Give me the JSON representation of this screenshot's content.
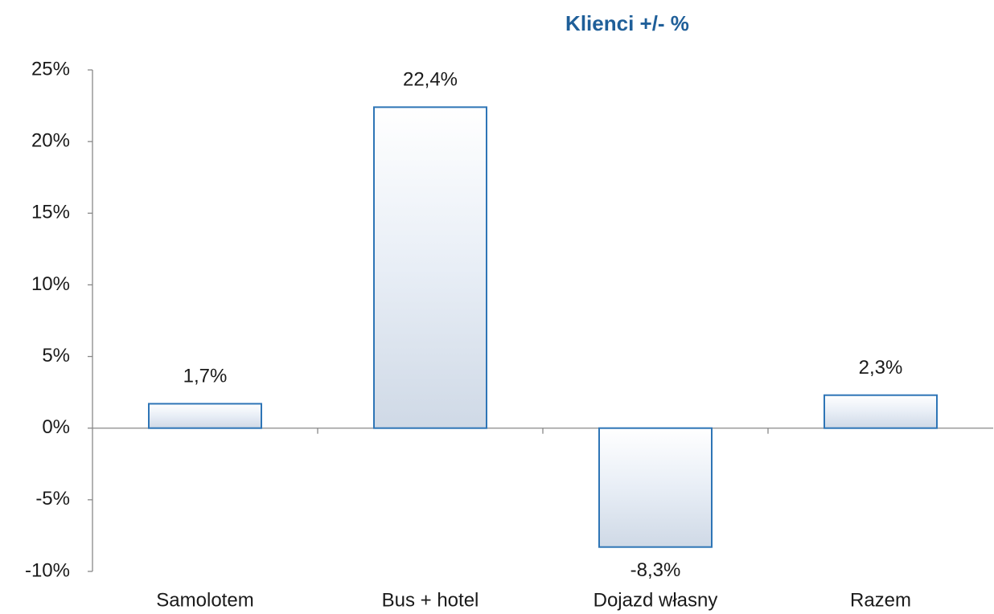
{
  "chart_data": {
    "type": "bar",
    "title": "Klienci +/- %",
    "categories": [
      "Samolotem",
      "Bus + hotel",
      "Dojazd własny",
      "Razem"
    ],
    "values": [
      1.7,
      22.4,
      -8.3,
      2.3
    ],
    "value_labels": [
      "1,7%",
      "22,4%",
      "-8,3%",
      "2,3%"
    ],
    "color": "#2e75b6",
    "ylim": [
      -10,
      25
    ],
    "yticks": [
      {
        "value": -10,
        "label": "-10%"
      },
      {
        "value": -5,
        "label": "-5%"
      },
      {
        "value": 0,
        "label": "0%"
      },
      {
        "value": 5,
        "label": "5%"
      },
      {
        "value": 10,
        "label": "10%"
      },
      {
        "value": 15,
        "label": "15%"
      },
      {
        "value": 20,
        "label": "20%"
      },
      {
        "value": 25,
        "label": "25%"
      }
    ],
    "grid": false
  }
}
